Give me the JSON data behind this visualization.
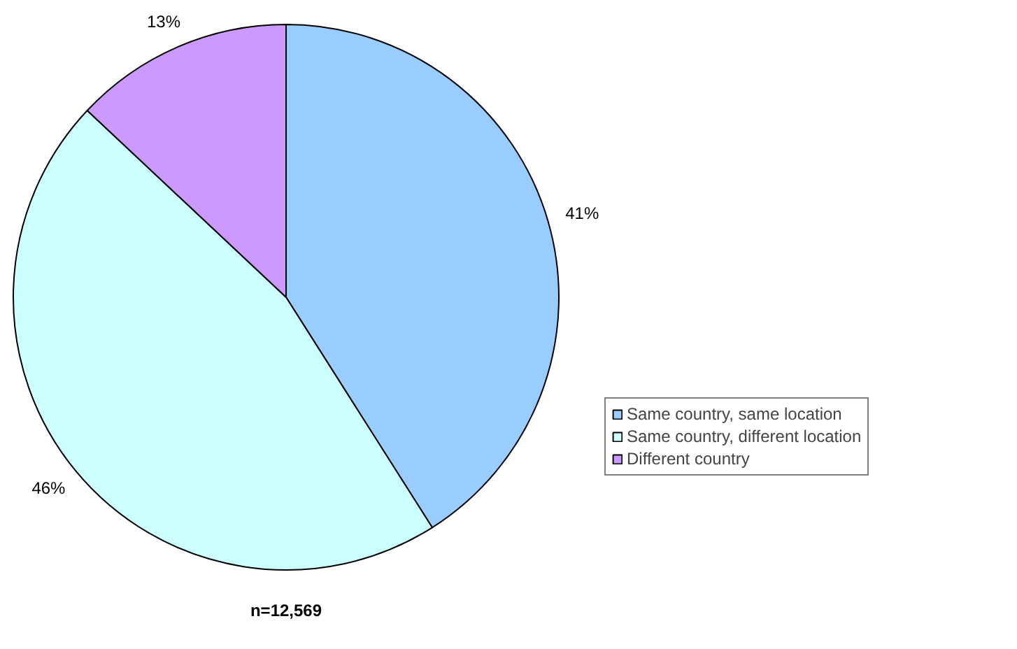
{
  "chart_data": {
    "type": "pie",
    "categories": [
      "Same country, same location",
      "Same country, different location",
      "Different country"
    ],
    "values": [
      41,
      46,
      13
    ],
    "colors": [
      "#99ccff",
      "#ccffff",
      "#cc99ff"
    ],
    "value_labels": [
      "41%",
      "46%",
      "13%"
    ],
    "annotations": [
      "n=12,569"
    ],
    "legend": "right"
  }
}
